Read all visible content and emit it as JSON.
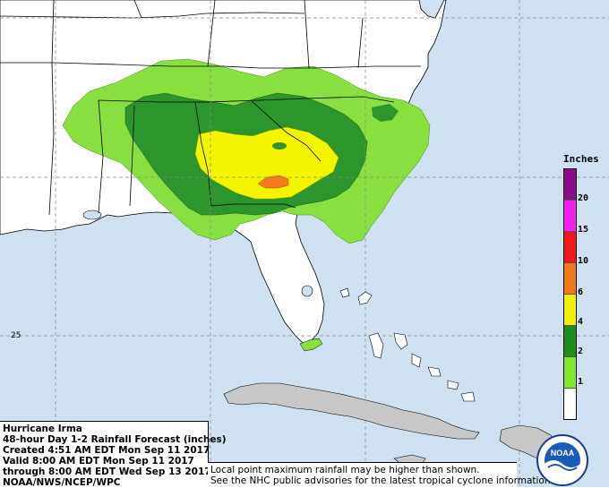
{
  "legend": {
    "title": "Inches",
    "labels": [
      "20",
      "15",
      "10",
      "6",
      "4",
      "2",
      "1"
    ],
    "swatches": [
      "#8a0a8a",
      "#f020f0",
      "#f01818",
      "#f07818",
      "#f0f000",
      "#208c20",
      "#80e830",
      "#ffffff"
    ]
  },
  "info": {
    "line1": "Hurricane Irma",
    "line2": "48-hour Day 1-2 Rainfall Forecast (inches)",
    "line3": "Created 4:51 AM EDT Mon Sep 11 2017",
    "line4": "Valid 8:00 AM EDT Mon Sep 11 2017",
    "line5": "through 8:00 AM EDT Wed Sep 13 2017",
    "line6": "NOAA/NWS/NCEP/WPC"
  },
  "notes": {
    "line1": "Local point maximum rainfall may be higher than shown.",
    "line2": "See the NHC public advisories for the latest tropical cyclone information."
  },
  "map": {
    "latitude_label": "25",
    "logo_text": "NOAA",
    "colors": {
      "land": "#ffffff",
      "water": "#cfe0f0",
      "light_green": "#88e040",
      "dark_green": "#2c962c",
      "yellow": "#f4f400",
      "orange": "#f47c1c",
      "land_gray": "#c8c8c8"
    }
  }
}
